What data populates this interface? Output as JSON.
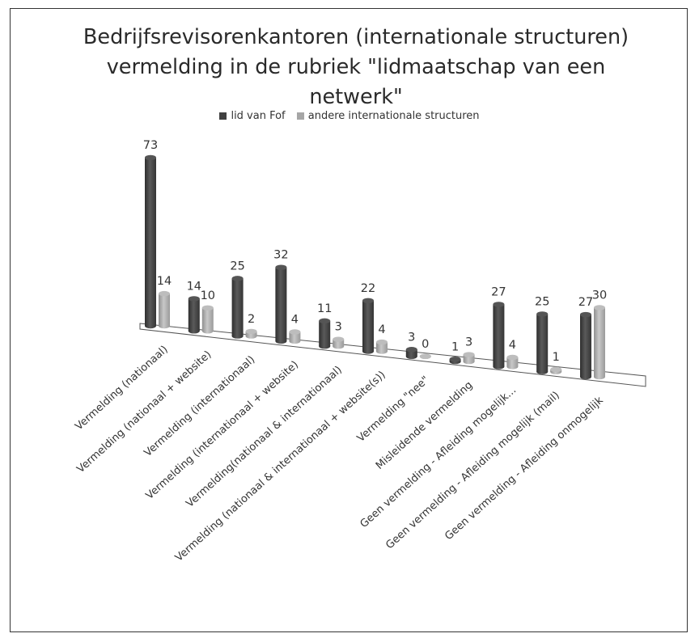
{
  "chart_data": {
    "type": "bar",
    "title": "Bedrijfsrevisorenkantoren (internationale structuren) vermelding in de rubriek \"lidmaatschap van een netwerk\"",
    "title_lines": [
      "Bedrijfsrevisorenkantoren (internationale structuren)",
      "vermelding in de rubriek \"lidmaatschap van een",
      "netwerk\""
    ],
    "legend_position": "top",
    "grid": false,
    "categories": [
      "Vermelding (nationaal)",
      "Vermelding (nationaal + website)",
      "Vermelding (internationaal)",
      "Vermelding (internationaal + website)",
      "Vermelding(nationaal & internationaal)",
      "Vermelding (nationaal & internationaal + website(s))",
      "Vermelding \"nee\"",
      "Misleidende vermelding",
      "Geen vermelding - Afleiding mogelijk...",
      "Geen vermelding - Afleiding mogelijk (mail)",
      "Geen vermelding - Afleiding onmogelijk"
    ],
    "series": [
      {
        "name": "lid van Fof",
        "color": "#404040",
        "values": [
          73,
          14,
          25,
          32,
          11,
          22,
          3,
          1,
          27,
          25,
          27
        ]
      },
      {
        "name": "andere internationale structuren",
        "color": "#a6a6a6",
        "values": [
          14,
          10,
          2,
          4,
          3,
          4,
          0,
          3,
          4,
          1,
          30
        ]
      }
    ]
  }
}
